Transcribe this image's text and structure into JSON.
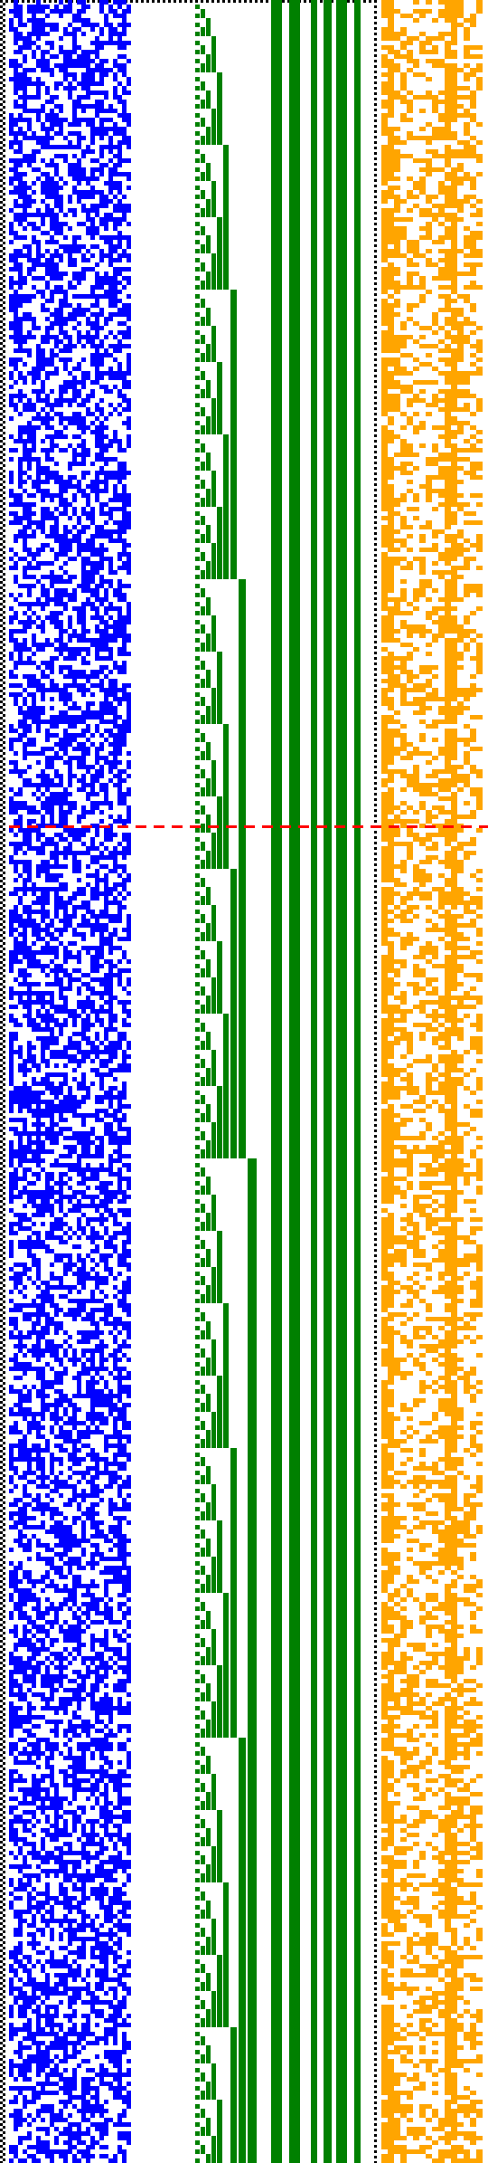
{
  "colors": {
    "background": "#ffffff",
    "border_dots": "#000000",
    "noise_block": "#0000ff",
    "counter_block": "#008000",
    "side_block": "#ffa500",
    "marker_line": "#ff0000"
  },
  "grid": {
    "rows": 478,
    "border_columns": 1,
    "noise_columns": 27,
    "counter_bits": 9,
    "side_columns": 16,
    "marker_row": 182
  }
}
